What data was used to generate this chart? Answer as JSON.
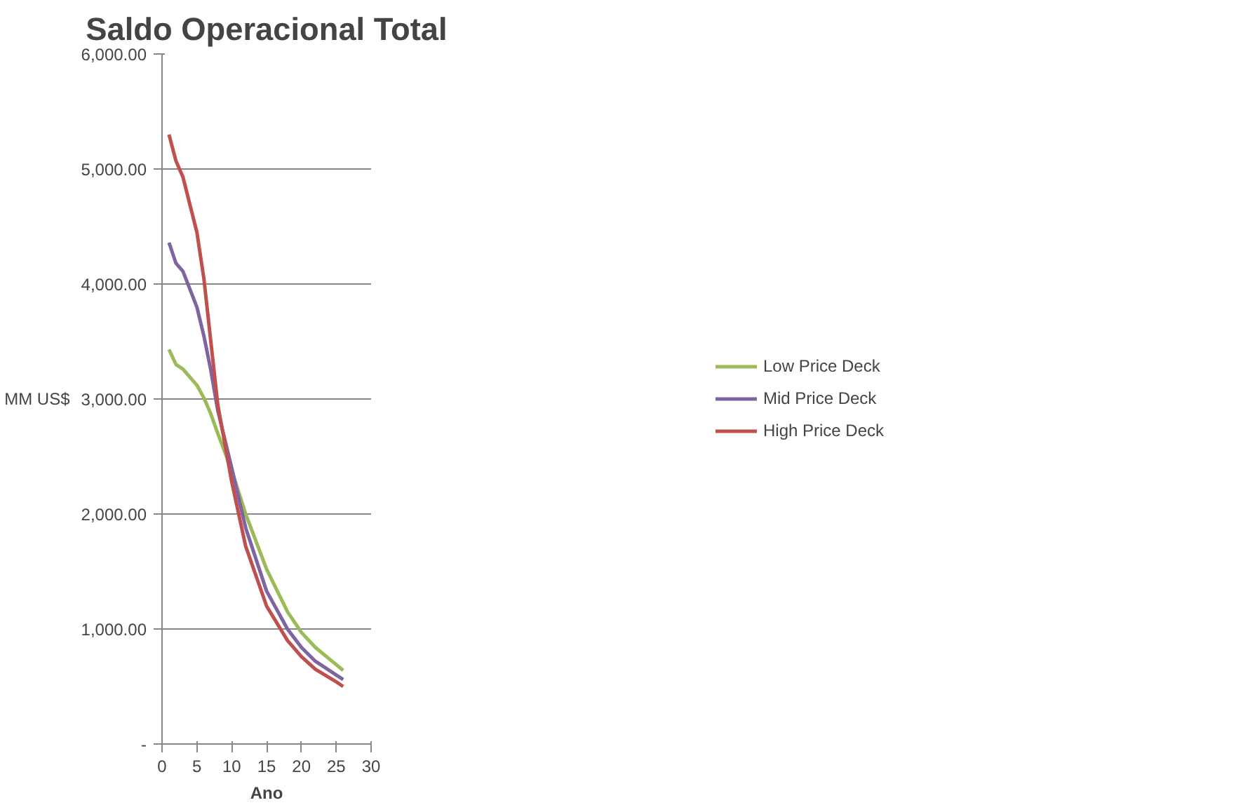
{
  "chart_data": {
    "type": "line",
    "title": "Saldo Operacional Total",
    "xlabel": "Ano",
    "ylabel": "MM US$",
    "x": [
      1,
      2,
      3,
      5,
      6,
      7,
      8,
      10,
      12,
      15,
      18,
      20,
      22,
      25,
      26
    ],
    "series": [
      {
        "name": "Low Price Deck",
        "color": "#9bbb59",
        "values": [
          3430,
          3300,
          3260,
          3120,
          3010,
          2870,
          2700,
          2380,
          2000,
          1520,
          1150,
          970,
          840,
          690,
          640
        ]
      },
      {
        "name": "Mid Price Deck",
        "color": "#8064a2",
        "values": [
          4360,
          4180,
          4110,
          3800,
          3550,
          3250,
          2900,
          2400,
          1880,
          1330,
          1000,
          840,
          720,
          600,
          560
        ]
      },
      {
        "name": "High Price Deck",
        "color": "#c0504d",
        "values": [
          5300,
          5070,
          4930,
          4450,
          4050,
          3500,
          2950,
          2280,
          1720,
          1200,
          900,
          760,
          650,
          540,
          500
        ]
      }
    ],
    "xlim": [
      0,
      30
    ],
    "xticks": [
      0,
      5,
      10,
      15,
      20,
      25,
      30
    ],
    "ylim": [
      0,
      6000
    ],
    "yticks": [
      {
        "value": 0,
        "label": "-"
      },
      {
        "value": 1000,
        "label": "1,000.00"
      },
      {
        "value": 2000,
        "label": "2,000.00"
      },
      {
        "value": 3000,
        "label": "3,000.00"
      },
      {
        "value": 4000,
        "label": "4,000.00"
      },
      {
        "value": 5000,
        "label": "5,000.00"
      },
      {
        "value": 6000,
        "label": "6,000.00"
      }
    ],
    "grid": "y",
    "legend": "right",
    "marker": "none",
    "line_style": "solid"
  }
}
